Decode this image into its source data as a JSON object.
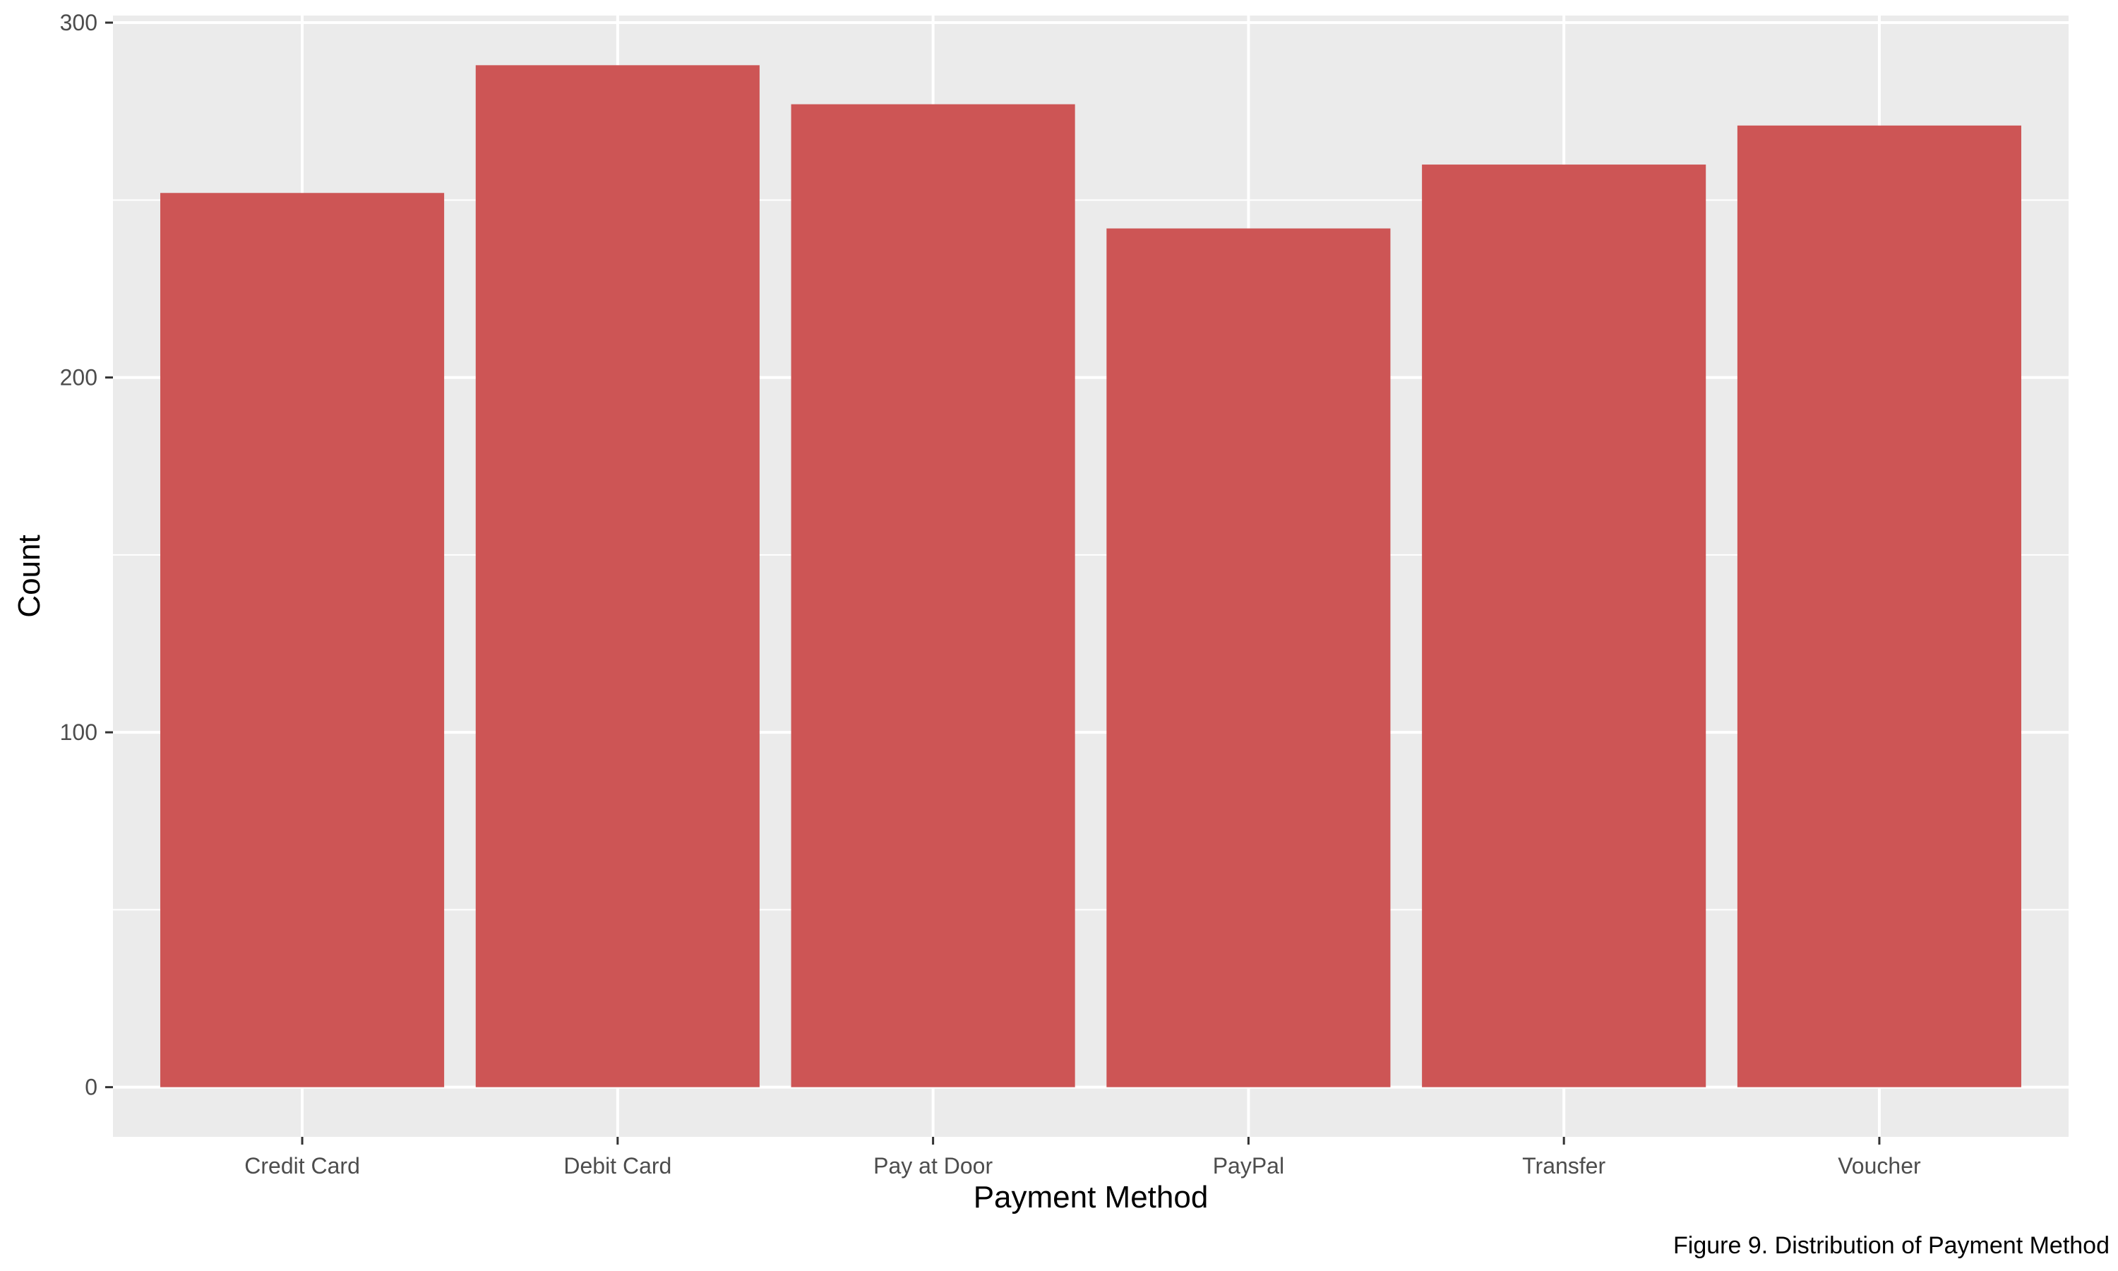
{
  "chart_data": {
    "type": "bar",
    "title": "",
    "xlabel": "Payment Method",
    "ylabel": "Count",
    "caption": "Figure 9. Distribution of Payment Method",
    "categories": [
      "Credit Card",
      "Debit Card",
      "Pay at Door",
      "PayPal",
      "Transfer",
      "Voucher"
    ],
    "values": [
      252,
      288,
      277,
      242,
      260,
      271
    ],
    "ylim": [
      -14,
      302
    ],
    "yticks": [
      0,
      100,
      200,
      300
    ],
    "y_minor_ticks": [
      50,
      150,
      250
    ],
    "grid": true,
    "legend": "none",
    "colors": {
      "bar": "#CD5555",
      "panel_background": "#EBEBEB",
      "grid": "#FFFFFF",
      "tick_text": "#4D4D4D",
      "axis_text": "#000000"
    }
  }
}
